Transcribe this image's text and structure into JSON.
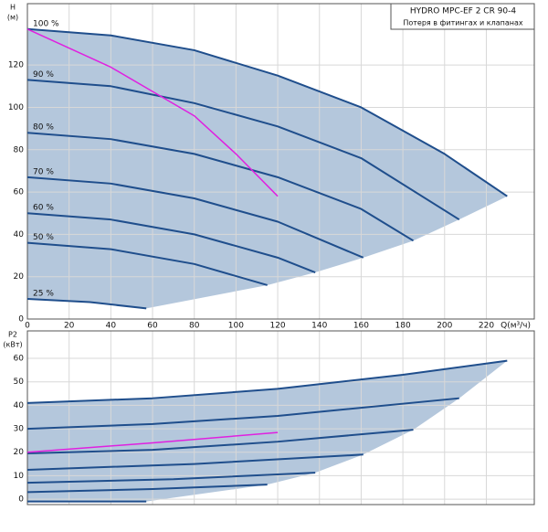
{
  "chart_data": [
    {
      "type": "line",
      "title": "HYDRO MPC-EF 2 CR 90-4",
      "subtitle": "Потеря в фитингах и клапанах",
      "xlabel": "Q(м³/ч)",
      "ylabel_lines": [
        "H",
        "(м)"
      ],
      "xlim": [
        0,
        243
      ],
      "ylim": [
        0,
        149
      ],
      "xticks": [
        0,
        20,
        40,
        60,
        80,
        100,
        120,
        140,
        160,
        180,
        200,
        220
      ],
      "yticks": [
        0,
        20,
        40,
        60,
        80,
        100,
        120
      ],
      "show_xtick_labels": true,
      "grid": true,
      "shade_color": "#b4c7dc",
      "series": [
        {
          "name": "100 %",
          "color": "#1f4e8c",
          "x": [
            0,
            40,
            80,
            120,
            160,
            200,
            230
          ],
          "values": [
            137,
            134,
            127,
            115,
            100,
            78,
            58
          ]
        },
        {
          "name": "90 %",
          "color": "#1f4e8c",
          "x": [
            0,
            40,
            80,
            120,
            160,
            207
          ],
          "values": [
            113,
            110,
            102,
            91,
            76,
            47
          ]
        },
        {
          "name": "80 %",
          "color": "#1f4e8c",
          "x": [
            0,
            40,
            80,
            120,
            160,
            185
          ],
          "values": [
            88,
            85,
            78,
            67,
            52,
            37
          ]
        },
        {
          "name": "70 %",
          "color": "#1f4e8c",
          "x": [
            0,
            40,
            80,
            120,
            161
          ],
          "values": [
            67,
            64,
            57,
            46,
            29
          ]
        },
        {
          "name": "60 %",
          "color": "#1f4e8c",
          "x": [
            0,
            40,
            80,
            120,
            138
          ],
          "values": [
            50,
            47,
            40,
            29,
            22
          ]
        },
        {
          "name": "50 %",
          "color": "#1f4e8c",
          "x": [
            0,
            40,
            80,
            115
          ],
          "values": [
            36,
            33,
            26,
            16
          ]
        },
        {
          "name": "25 %",
          "color": "#1f4e8c",
          "x": [
            0,
            30,
            57
          ],
          "values": [
            9.5,
            8,
            5
          ]
        }
      ],
      "system_curve": {
        "color": "#e020e0",
        "x": [
          0,
          40,
          80,
          100,
          120
        ],
        "values": [
          137,
          119,
          96,
          78,
          58
        ]
      }
    },
    {
      "type": "line",
      "ylabel_lines": [
        "P2",
        "(кВт)"
      ],
      "xlim": [
        0,
        243
      ],
      "ylim": [
        -2.3,
        71.7
      ],
      "xticks": [
        0,
        20,
        40,
        60,
        80,
        100,
        120,
        140,
        160,
        180,
        200,
        220
      ],
      "yticks": [
        0,
        10,
        20,
        30,
        40,
        50,
        60
      ],
      "show_xtick_labels": false,
      "grid": true,
      "shade_color": "#b4c7dc",
      "series": [
        {
          "color": "#1f4e8c",
          "x": [
            0,
            60,
            120,
            180,
            230
          ],
          "values": [
            41,
            43,
            47,
            53,
            59
          ]
        },
        {
          "color": "#1f4e8c",
          "x": [
            0,
            60,
            120,
            207
          ],
          "values": [
            30,
            32,
            35.5,
            43
          ]
        },
        {
          "color": "#1f4e8c",
          "x": [
            0,
            60,
            120,
            185
          ],
          "values": [
            19.5,
            21,
            24.5,
            29.6
          ]
        },
        {
          "color": "#1f4e8c",
          "x": [
            0,
            80,
            161
          ],
          "values": [
            12.5,
            15,
            19
          ]
        },
        {
          "color": "#1f4e8c",
          "x": [
            0,
            70,
            138
          ],
          "values": [
            7,
            8.5,
            11.3
          ]
        },
        {
          "color": "#1f4e8c",
          "x": [
            0,
            60,
            115
          ],
          "values": [
            3,
            4.3,
            6.2
          ]
        },
        {
          "color": "#1f4e8c",
          "x": [
            0,
            57
          ],
          "values": [
            -1,
            -1
          ]
        }
      ],
      "system_curve": {
        "color": "#e020e0",
        "x": [
          0,
          60,
          120
        ],
        "values": [
          20,
          24,
          28.4
        ]
      }
    }
  ]
}
